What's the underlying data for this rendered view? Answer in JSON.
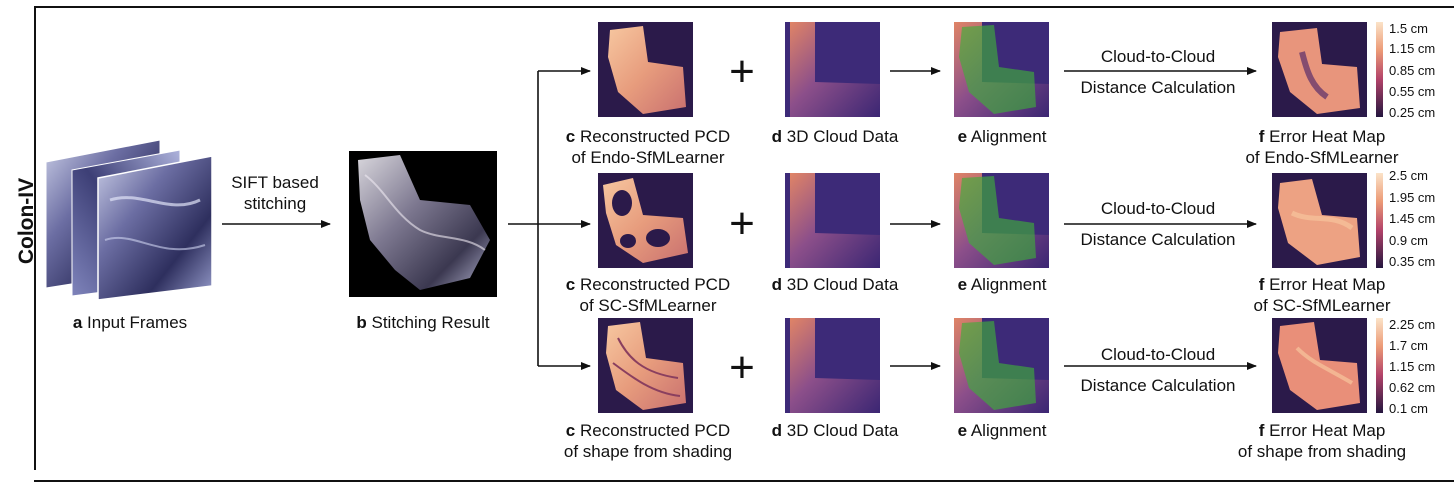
{
  "side_label": "Colon-IV",
  "input": {
    "letter": "a",
    "caption": "Input Frames"
  },
  "stitch_step": {
    "line1": "SIFT based",
    "line2": "stitching"
  },
  "stitching": {
    "letter": "b",
    "caption": "Stitching Result"
  },
  "rows": [
    {
      "pcd": {
        "letter": "c",
        "line1": "Reconstructed PCD",
        "line2": "of Endo-SfMLearner"
      },
      "cloud": {
        "letter": "d",
        "caption": "3D Cloud Data"
      },
      "align": {
        "letter": "e",
        "caption": "Alignment"
      },
      "calc": {
        "line1": "Cloud-to-Cloud",
        "line2": "Distance Calculation"
      },
      "heat": {
        "letter": "f",
        "line1": "Error Heat Map",
        "line2": "of Endo-SfMLearner"
      },
      "colorbar": [
        "1.5 cm",
        "1.15 cm",
        "0.85 cm",
        "0.55 cm",
        "0.25 cm"
      ]
    },
    {
      "pcd": {
        "letter": "c",
        "line1": "Reconstructed PCD",
        "line2": "of SC-SfMLearner"
      },
      "cloud": {
        "letter": "d",
        "caption": "3D Cloud Data"
      },
      "align": {
        "letter": "e",
        "caption": "Alignment"
      },
      "calc": {
        "line1": "Cloud-to-Cloud",
        "line2": "Distance Calculation"
      },
      "heat": {
        "letter": "f",
        "line1": "Error Heat Map",
        "line2": "of SC-SfMLearner"
      },
      "colorbar": [
        "2.5 cm",
        "1.95 cm",
        "1.45 cm",
        "0.9 cm",
        "0.35 cm"
      ]
    },
    {
      "pcd": {
        "letter": "c",
        "line1": "Reconstructed PCD",
        "line2": "of shape from shading"
      },
      "cloud": {
        "letter": "d",
        "caption": "3D Cloud Data"
      },
      "align": {
        "letter": "e",
        "caption": "Alignment"
      },
      "calc": {
        "line1": "Cloud-to-Cloud",
        "line2": "Distance Calculation"
      },
      "heat": {
        "letter": "f",
        "line1": "Error Heat Map",
        "line2": "of shape from shading"
      },
      "colorbar": [
        "2.25 cm",
        "1.7 cm",
        "1.15 cm",
        "0.62 cm",
        "0.1 cm"
      ]
    }
  ],
  "plus_sign": "+",
  "colors": {
    "background": "#ffffff",
    "text": "#111111",
    "heat_dark": "#2b1a4a",
    "heat_light": "#f7c59c",
    "cloud_purple": "#3d2a78",
    "cloud_orange": "#e2876a",
    "overlay_green": "#3fae3a"
  }
}
